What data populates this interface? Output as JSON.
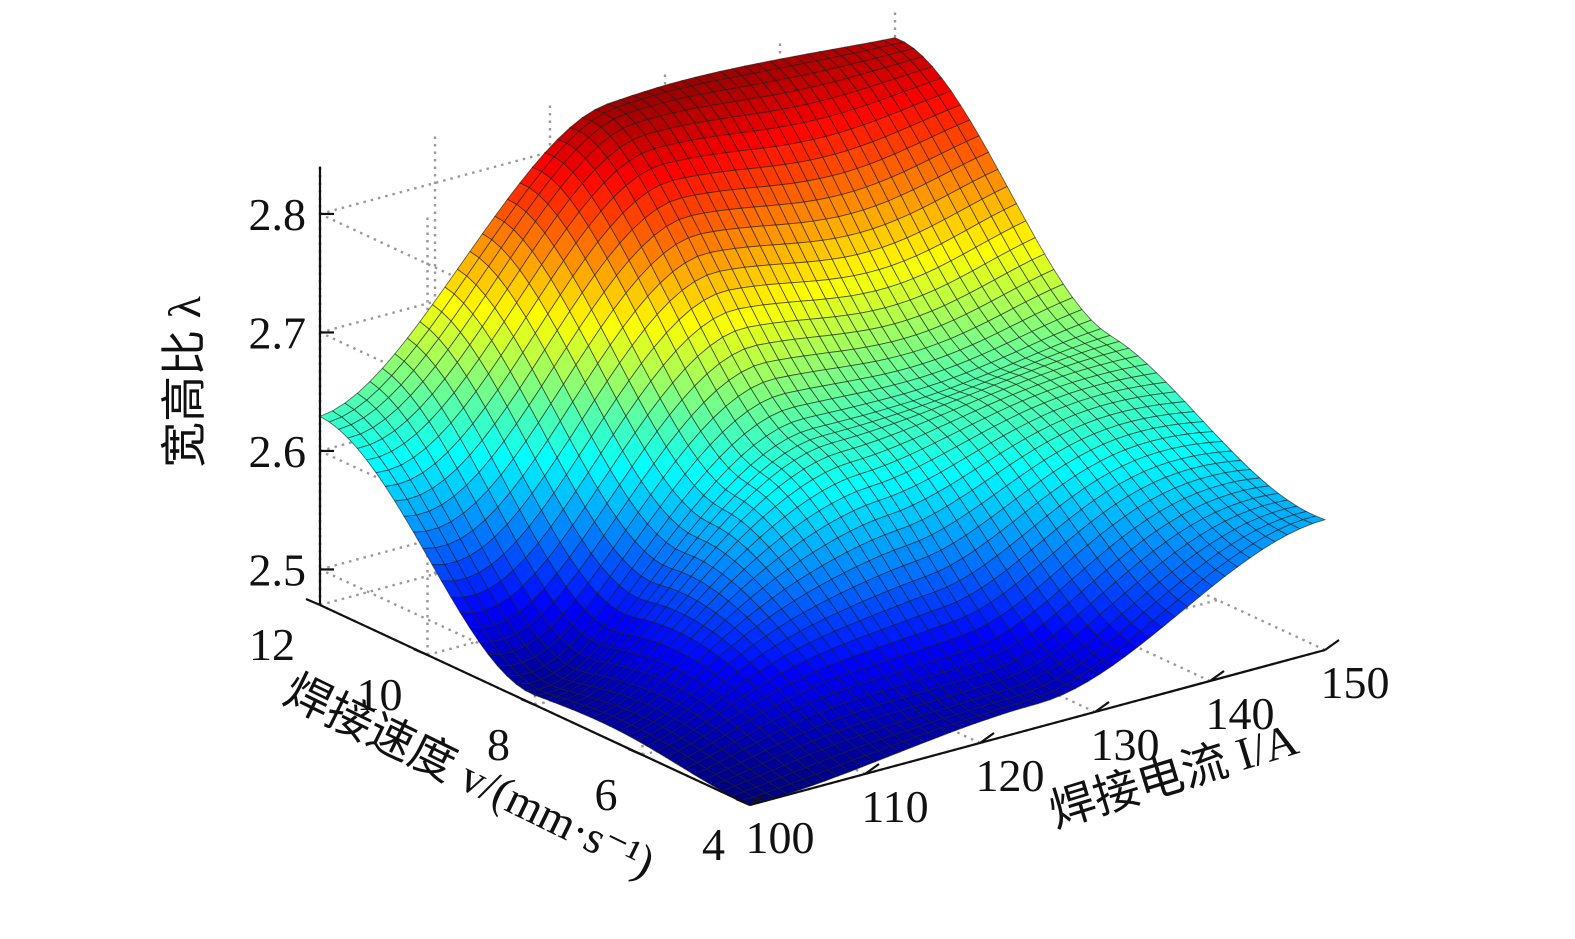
{
  "chart_data": {
    "type": "surface",
    "xlabel": "焊接电流 I/A",
    "ylabel": "焊接速度 v/(mm·s⁻¹)",
    "zlabel": "宽高比 λ",
    "x_ticks": [
      100,
      110,
      120,
      130,
      140,
      150
    ],
    "y_ticks": [
      4,
      6,
      8,
      10,
      12
    ],
    "z_ticks": [
      2.5,
      2.6,
      2.7,
      2.8
    ],
    "xlim": [
      100,
      150
    ],
    "ylim": [
      4,
      12
    ],
    "zlim": [
      2.47,
      2.84
    ],
    "grid": true,
    "colormap": "jet",
    "colors": {
      "low": "#00007f",
      "mid_low": "#0070ff",
      "mid": "#3fe0c0",
      "mid_high": "#f5e640",
      "high": "#d01010",
      "top": "#5a0000"
    },
    "surface_samples": [
      {
        "x": 100,
        "y": 4,
        "z": 2.47
      },
      {
        "x": 100,
        "y": 8,
        "z": 2.5
      },
      {
        "x": 100,
        "y": 12,
        "z": 2.63
      },
      {
        "x": 125,
        "y": 4,
        "z": 2.49
      },
      {
        "x": 125,
        "y": 8,
        "z": 2.63
      },
      {
        "x": 125,
        "y": 12,
        "z": 2.82
      },
      {
        "x": 150,
        "y": 4,
        "z": 2.58
      },
      {
        "x": 150,
        "y": 8,
        "z": 2.65
      },
      {
        "x": 150,
        "y": 12,
        "z": 2.82
      }
    ]
  }
}
